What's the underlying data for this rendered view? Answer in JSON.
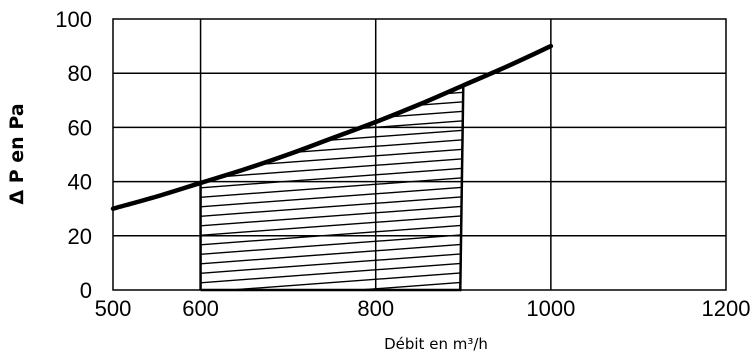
{
  "chart_data": {
    "type": "line",
    "title": "",
    "xlabel": "Débit en m³/h",
    "ylabel": "Δ P en Pa",
    "xlim": [
      500,
      1200
    ],
    "ylim": [
      0,
      100
    ],
    "x_ticks": [
      "500",
      "600",
      "800",
      "1000",
      "1200"
    ],
    "y_ticks": [
      "0",
      "20",
      "40",
      "60",
      "80",
      "100"
    ],
    "grid": true,
    "legend": "none",
    "series": [
      {
        "x": [
          500,
          550,
          600,
          650,
          700,
          750,
          800,
          850,
          900,
          950,
          1000
        ],
        "y": [
          30,
          34.5,
          39.5,
          44.5,
          50,
          56,
          62,
          68.5,
          75.5,
          82.5,
          90
        ]
      }
    ],
    "shaded_region": {
      "x_from": 600,
      "x_to": 900,
      "pattern": "diagonal hatch"
    },
    "colors": {
      "line": "#000000",
      "grid": "#000000",
      "hatch": "#000000"
    }
  }
}
